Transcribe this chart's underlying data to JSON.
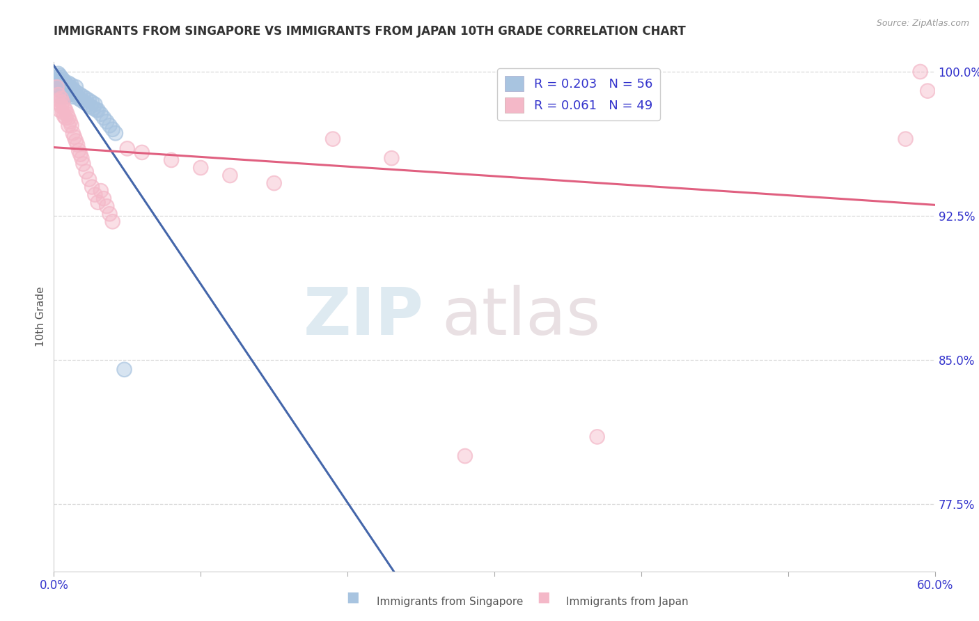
{
  "title": "IMMIGRANTS FROM SINGAPORE VS IMMIGRANTS FROM JAPAN 10TH GRADE CORRELATION CHART",
  "source": "Source: ZipAtlas.com",
  "ylabel": "10th Grade",
  "xlim": [
    0.0,
    0.6
  ],
  "ylim": [
    0.74,
    1.005
  ],
  "y_ticks": [
    0.775,
    0.85,
    0.925,
    1.0
  ],
  "y_tick_labels": [
    "77.5%",
    "85.0%",
    "92.5%",
    "100.0%"
  ],
  "singapore_color": "#a8c4e0",
  "japan_color": "#f4b8c8",
  "singapore_line_color": "#4466aa",
  "japan_line_color": "#e06080",
  "singapore_R": 0.203,
  "singapore_N": 56,
  "japan_R": 0.061,
  "japan_N": 49,
  "watermark_zip": "ZIP",
  "watermark_atlas": "atlas",
  "background_color": "#ffffff",
  "grid_color": "#d8d8d8",
  "tick_color": "#3333cc",
  "title_color": "#333333",
  "singapore_x": [
    0.002,
    0.003,
    0.003,
    0.003,
    0.004,
    0.004,
    0.004,
    0.005,
    0.005,
    0.005,
    0.005,
    0.006,
    0.006,
    0.006,
    0.007,
    0.007,
    0.007,
    0.008,
    0.008,
    0.008,
    0.009,
    0.009,
    0.01,
    0.01,
    0.01,
    0.011,
    0.011,
    0.012,
    0.012,
    0.013,
    0.013,
    0.014,
    0.015,
    0.015,
    0.016,
    0.017,
    0.018,
    0.019,
    0.02,
    0.021,
    0.022,
    0.023,
    0.024,
    0.025,
    0.026,
    0.027,
    0.028,
    0.029,
    0.03,
    0.032,
    0.034,
    0.036,
    0.038,
    0.04,
    0.042,
    0.048
  ],
  "singapore_y": [
    0.997,
    0.999,
    0.996,
    0.993,
    0.998,
    0.995,
    0.991,
    0.997,
    0.994,
    0.99,
    0.987,
    0.996,
    0.993,
    0.989,
    0.995,
    0.992,
    0.988,
    0.994,
    0.991,
    0.987,
    0.993,
    0.99,
    0.994,
    0.991,
    0.988,
    0.992,
    0.988,
    0.993,
    0.989,
    0.991,
    0.987,
    0.99,
    0.992,
    0.988,
    0.989,
    0.986,
    0.988,
    0.985,
    0.987,
    0.984,
    0.986,
    0.983,
    0.985,
    0.982,
    0.984,
    0.981,
    0.983,
    0.98,
    0.98,
    0.978,
    0.976,
    0.974,
    0.972,
    0.97,
    0.968,
    0.845
  ],
  "japan_x": [
    0.002,
    0.003,
    0.003,
    0.004,
    0.004,
    0.005,
    0.005,
    0.006,
    0.006,
    0.007,
    0.007,
    0.008,
    0.008,
    0.009,
    0.01,
    0.01,
    0.011,
    0.012,
    0.013,
    0.014,
    0.015,
    0.016,
    0.017,
    0.018,
    0.019,
    0.02,
    0.022,
    0.024,
    0.026,
    0.028,
    0.03,
    0.032,
    0.034,
    0.036,
    0.038,
    0.04,
    0.05,
    0.06,
    0.08,
    0.1,
    0.12,
    0.15,
    0.19,
    0.23,
    0.28,
    0.37,
    0.58,
    0.59,
    0.595
  ],
  "japan_y": [
    0.992,
    0.988,
    0.984,
    0.985,
    0.98,
    0.986,
    0.982,
    0.984,
    0.979,
    0.981,
    0.977,
    0.98,
    0.976,
    0.978,
    0.976,
    0.972,
    0.974,
    0.972,
    0.968,
    0.966,
    0.964,
    0.962,
    0.959,
    0.957,
    0.955,
    0.952,
    0.948,
    0.944,
    0.94,
    0.936,
    0.932,
    0.938,
    0.934,
    0.93,
    0.926,
    0.922,
    0.96,
    0.958,
    0.954,
    0.95,
    0.946,
    0.942,
    0.965,
    0.955,
    0.8,
    0.81,
    0.965,
    1.0,
    0.99
  ]
}
